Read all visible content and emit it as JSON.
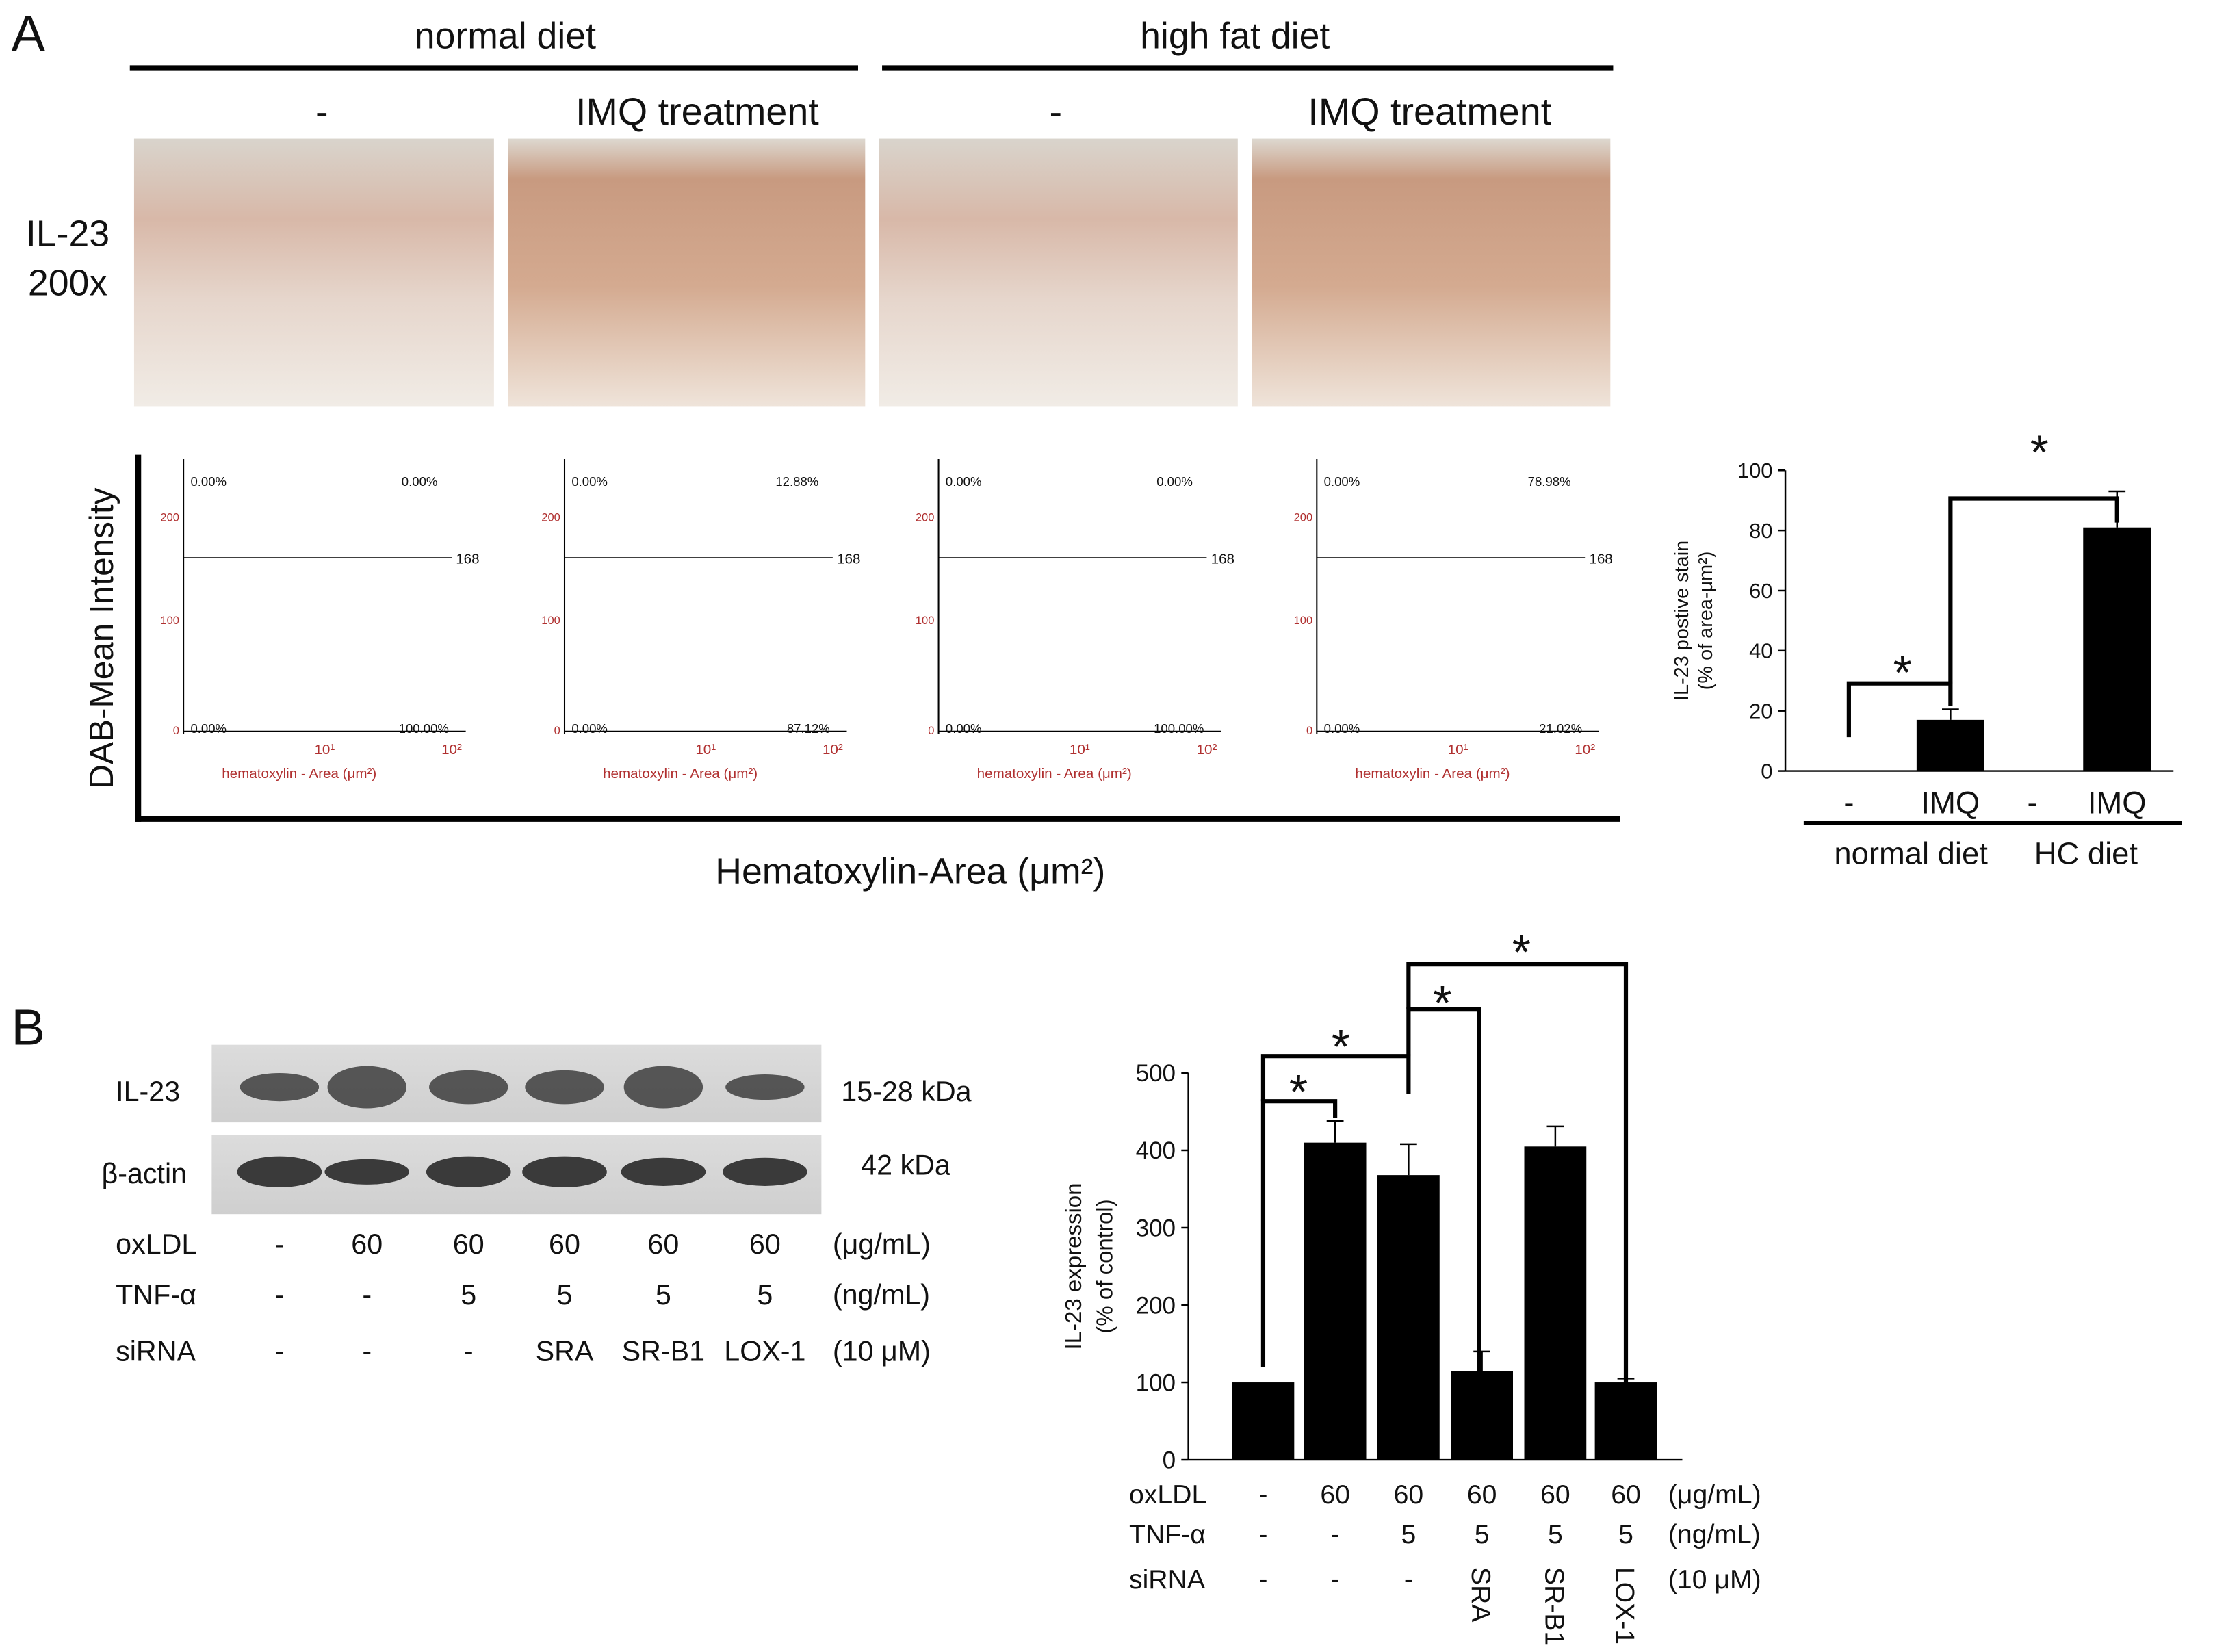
{
  "panel_a": {
    "label": "A",
    "groups": [
      "normal diet",
      "high fat diet"
    ],
    "treatments": [
      "-",
      "IMQ treatment",
      "-",
      "IMQ treatment"
    ],
    "stain": "IL-23",
    "magnification": "200x",
    "y_axis_label": "DAB-Mean Intensity",
    "x_axis_label": "Hematoxylin-Area (μm²)",
    "scatter_plots": [
      {
        "quadrants": [
          "0.00%",
          "0.00%",
          "0.00%",
          "100.00%"
        ],
        "threshold": 168,
        "yticks": [
          200,
          100,
          0
        ],
        "xticks": [
          "10¹",
          "10²"
        ],
        "x_label": "hematoxylin - Area (μm²)"
      },
      {
        "quadrants": [
          "0.00%",
          "12.88%",
          "0.00%",
          "87.12%"
        ],
        "threshold": 168,
        "yticks": [
          200,
          100,
          0
        ],
        "xticks": [
          "10¹",
          "10²"
        ],
        "x_label": "hematoxylin - Area (μm²)"
      },
      {
        "quadrants": [
          "0.00%",
          "0.00%",
          "0.00%",
          "100.00%"
        ],
        "threshold": 168,
        "yticks": [
          200,
          100,
          0
        ],
        "xticks": [
          "10¹",
          "10²"
        ],
        "x_label": "hematoxylin - Area (μm²)"
      },
      {
        "quadrants": [
          "0.00%",
          "78.98%",
          "0.00%",
          "21.02%"
        ],
        "threshold": 168,
        "yticks": [
          200,
          100,
          0
        ],
        "xticks": [
          "10¹",
          "10²"
        ],
        "x_label": "hematoxylin - Area (μm²)"
      }
    ]
  },
  "panel_b": {
    "label": "B",
    "bands": [
      {
        "name": "IL-23",
        "size": "15-28 kDa"
      },
      {
        "name": "β-actin",
        "size": "42 kDa"
      }
    ],
    "conditions": [
      {
        "name": "oxLDL",
        "values": [
          "-",
          "60",
          "60",
          "60",
          "60",
          "60"
        ],
        "unit": "(μg/mL)"
      },
      {
        "name": "TNF-α",
        "values": [
          "-",
          "-",
          "5",
          "5",
          "5",
          "5"
        ],
        "unit": "(ng/mL)"
      },
      {
        "name": "siRNA",
        "values": [
          "-",
          "-",
          "-",
          "SRA",
          "SR-B1",
          "LOX-1"
        ],
        "unit": "(10 μM)"
      }
    ]
  },
  "chart_data": [
    {
      "type": "bar",
      "y_label": [
        "IL-23 postive stain",
        "(% of area-μm²)"
      ],
      "ylim": [
        0,
        100
      ],
      "yticks": [
        0,
        20,
        40,
        60,
        80,
        100
      ],
      "categories": [
        "-",
        "IMQ",
        "-",
        "IMQ"
      ],
      "values": [
        null,
        17,
        null,
        81
      ],
      "errors": [
        null,
        3.5,
        null,
        12
      ],
      "color": "#000000",
      "groups": [
        "normal diet",
        "HC diet"
      ],
      "annotations": [
        "*",
        "*"
      ]
    },
    {
      "type": "bar",
      "y_label": [
        "IL-23 expression",
        "(% of control)"
      ],
      "ylim": [
        0,
        500
      ],
      "yticks": [
        0,
        100,
        200,
        300,
        400,
        500
      ],
      "values": [
        100,
        410,
        368,
        115,
        405,
        100
      ],
      "errors": [
        null,
        28,
        40,
        25,
        26,
        5
      ],
      "color": "#000000",
      "annotations": [
        "*",
        "*",
        "*",
        "*"
      ],
      "conditions": [
        {
          "name": "oxLDL",
          "values": [
            "-",
            "60",
            "60",
            "60",
            "60",
            "60"
          ],
          "unit": "(μg/mL)"
        },
        {
          "name": "TNF-α",
          "values": [
            "-",
            "-",
            "5",
            "5",
            "5",
            "5"
          ],
          "unit": "(ng/mL)"
        },
        {
          "name": "siRNA",
          "values": [
            "-",
            "-",
            "-",
            "SRA",
            "SR-B1",
            "LOX-1"
          ],
          "unit": "(10 μM)"
        }
      ]
    }
  ]
}
